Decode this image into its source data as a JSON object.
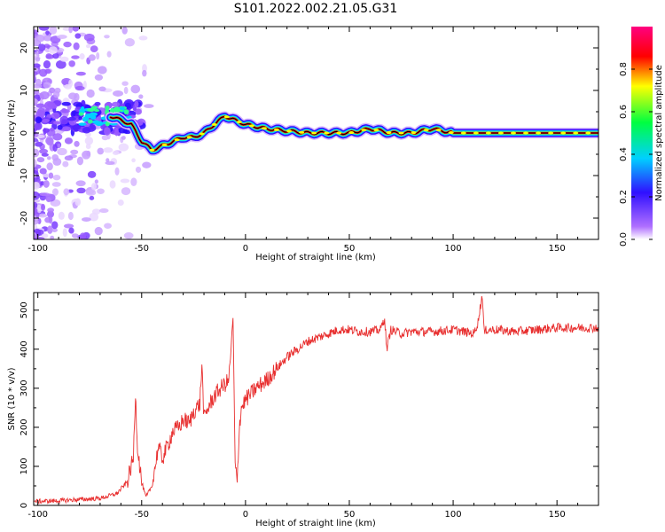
{
  "title": "S101.2022.002.21.05.G31",
  "chart_data": [
    {
      "type": "heatmap",
      "xlabel": "Height of straight line (km)",
      "ylabel": "Frequency (Hz)",
      "xlim": [
        -102,
        170
      ],
      "ylim": [
        -25,
        25
      ],
      "xticks": [
        -100,
        -50,
        0,
        50,
        100,
        150
      ],
      "yticks": [
        20,
        10,
        0,
        -10,
        -20
      ],
      "colorbar": {
        "label": "Normalized spectral amplitude",
        "range": [
          0.0,
          1.0
        ],
        "ticks": [
          0.0,
          0.2,
          0.4,
          0.6,
          0.8
        ],
        "colors": [
          "#ffffff",
          "#b070ff",
          "#3010ff",
          "#00d0ff",
          "#00ff40",
          "#ffff00",
          "#ff0000",
          "#ff0080"
        ]
      },
      "ridge_frequency": {
        "x": [
          -65,
          -55,
          -50,
          -45,
          -40,
          -35,
          -30,
          -25,
          -20,
          -15,
          -10,
          -5,
          0,
          10,
          20,
          30,
          40,
          50,
          60,
          70,
          80,
          90,
          100,
          120,
          170
        ],
        "y": [
          4,
          2,
          -2,
          -4,
          -3,
          -2,
          -1,
          -1,
          0,
          2,
          4,
          3,
          2,
          1,
          0.5,
          0,
          0,
          0,
          1,
          0,
          0,
          1,
          0,
          0,
          0
        ]
      }
    },
    {
      "type": "line",
      "xlabel": "Height of straight line (km)",
      "ylabel": "SNR (10 * v/v)",
      "xlim": [
        -102,
        170
      ],
      "ylim": [
        0,
        545
      ],
      "xticks": [
        -100,
        -50,
        0,
        50,
        100,
        150
      ],
      "yticks": [
        0,
        100,
        200,
        300,
        400,
        500
      ],
      "color": "#e83030",
      "series": [
        {
          "x": [
            -102,
            -90,
            -80,
            -70,
            -62,
            -57,
            -54,
            -53,
            -52,
            -50,
            -48,
            -45,
            -42,
            -40,
            -37,
            -35,
            -32,
            -30,
            -27,
            -25,
            -22,
            -21,
            -20,
            -18,
            -15,
            -12,
            -8,
            -6,
            -5,
            -4,
            -3,
            -2,
            0,
            5,
            10,
            15,
            20,
            25,
            30,
            35,
            40,
            45,
            50,
            55,
            60,
            65,
            67,
            68,
            70,
            75,
            80,
            90,
            100,
            110,
            112,
            114,
            115,
            116,
            118,
            120,
            130,
            140,
            150,
            160,
            170
          ],
          "y": [
            10,
            12,
            15,
            18,
            30,
            60,
            120,
            290,
            150,
            60,
            20,
            50,
            150,
            120,
            160,
            190,
            200,
            220,
            210,
            240,
            260,
            360,
            220,
            250,
            280,
            300,
            320,
            480,
            100,
            60,
            200,
            250,
            270,
            300,
            320,
            350,
            380,
            400,
            420,
            430,
            440,
            450,
            450,
            445,
            445,
            450,
            480,
            400,
            450,
            440,
            445,
            445,
            450,
            440,
            470,
            540,
            440,
            450,
            450,
            450,
            445,
            450,
            455,
            455,
            455
          ]
        }
      ]
    }
  ]
}
